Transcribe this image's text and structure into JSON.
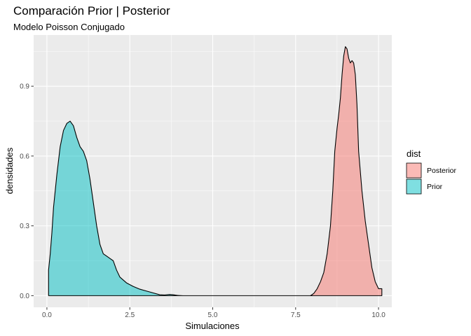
{
  "chart_data": {
    "type": "area",
    "title": "Comparación Prior | Posterior",
    "subtitle": "Modelo Poisson Conjugado",
    "xlabel": "Simulaciones",
    "ylabel": "densidades",
    "xlim": [
      -0.4,
      10.4
    ],
    "ylim": [
      -0.05,
      1.12
    ],
    "x_ticks": [
      0.0,
      2.5,
      5.0,
      7.5,
      10.0
    ],
    "x_tick_labels": [
      "0.0",
      "2.5",
      "5.0",
      "7.5",
      "10.0"
    ],
    "y_ticks": [
      0.0,
      0.3,
      0.6,
      0.9
    ],
    "y_tick_labels": [
      "0.0",
      "0.3",
      "0.6",
      "0.9"
    ],
    "grid": true,
    "legend": {
      "title": "dist",
      "position": "right"
    },
    "series": [
      {
        "name": "Posterior",
        "color": "#F8766D",
        "fill_alpha": 0.5,
        "points": [
          [
            7.95,
            0.0
          ],
          [
            8.05,
            0.01
          ],
          [
            8.15,
            0.03
          ],
          [
            8.25,
            0.06
          ],
          [
            8.35,
            0.1
          ],
          [
            8.45,
            0.18
          ],
          [
            8.55,
            0.3
          ],
          [
            8.62,
            0.45
          ],
          [
            8.68,
            0.62
          ],
          [
            8.75,
            0.72
          ],
          [
            8.8,
            0.78
          ],
          [
            8.85,
            0.85
          ],
          [
            8.9,
            0.95
          ],
          [
            8.95,
            1.03
          ],
          [
            9.0,
            1.07
          ],
          [
            9.05,
            1.06
          ],
          [
            9.1,
            1.02
          ],
          [
            9.15,
            1.0
          ],
          [
            9.2,
            1.01
          ],
          [
            9.25,
            1.0
          ],
          [
            9.3,
            0.95
          ],
          [
            9.35,
            0.82
          ],
          [
            9.4,
            0.62
          ],
          [
            9.5,
            0.45
          ],
          [
            9.6,
            0.32
          ],
          [
            9.7,
            0.22
          ],
          [
            9.8,
            0.12
          ],
          [
            9.9,
            0.06
          ],
          [
            10.0,
            0.03
          ],
          [
            10.1,
            0.03
          ]
        ]
      },
      {
        "name": "Prior",
        "color": "#00BFC4",
        "fill_alpha": 0.5,
        "points": [
          [
            0.05,
            0.11
          ],
          [
            0.1,
            0.18
          ],
          [
            0.15,
            0.27
          ],
          [
            0.2,
            0.38
          ],
          [
            0.3,
            0.52
          ],
          [
            0.4,
            0.64
          ],
          [
            0.5,
            0.71
          ],
          [
            0.6,
            0.74
          ],
          [
            0.7,
            0.75
          ],
          [
            0.8,
            0.73
          ],
          [
            0.9,
            0.68
          ],
          [
            1.0,
            0.64
          ],
          [
            1.1,
            0.62
          ],
          [
            1.2,
            0.58
          ],
          [
            1.3,
            0.5
          ],
          [
            1.4,
            0.4
          ],
          [
            1.5,
            0.3
          ],
          [
            1.6,
            0.22
          ],
          [
            1.7,
            0.18
          ],
          [
            1.8,
            0.17
          ],
          [
            1.9,
            0.16
          ],
          [
            2.0,
            0.15
          ],
          [
            2.1,
            0.11
          ],
          [
            2.2,
            0.08
          ],
          [
            2.4,
            0.055
          ],
          [
            2.6,
            0.04
          ],
          [
            2.8,
            0.028
          ],
          [
            3.0,
            0.02
          ],
          [
            3.2,
            0.012
          ],
          [
            3.4,
            0.004
          ],
          [
            3.55,
            0.003
          ],
          [
            3.7,
            0.005
          ],
          [
            3.8,
            0.004
          ],
          [
            3.95,
            0.001
          ],
          [
            4.1,
            0.0
          ],
          [
            8.0,
            0.0
          ]
        ]
      }
    ]
  }
}
